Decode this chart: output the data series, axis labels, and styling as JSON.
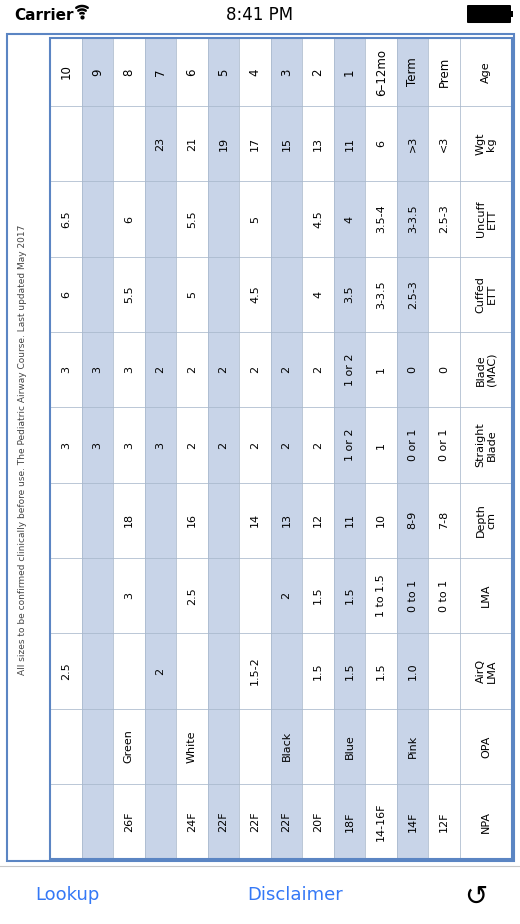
{
  "status_bar_text": "8:41 PM",
  "carrier_text": "Carrier",
  "bottom_links": [
    "Lookup",
    "Disclaimer"
  ],
  "sidebar_text": "All sizes to be confirmed clinically before use. The Pediatric Airway Course. Last updated May 2017",
  "age_labels": [
    "10",
    "9",
    "8",
    "7",
    "6",
    "5",
    "4",
    "3",
    "2",
    "1",
    "6–12mo",
    "Term",
    "Prem"
  ],
  "row_labels": [
    "Age",
    "Wgt\nkg",
    "Uncuff\nETT",
    "Cuffed\nETT",
    "Blade\n(MAC)",
    "Straight\nBlade",
    "Depth\ncm",
    "LMA",
    "AirQ\nLMA",
    "OPA",
    "NPA"
  ],
  "table_data": {
    "wgt": [
      "",
      "",
      "",
      "23",
      "21",
      "19",
      "17",
      "15",
      "13",
      "11",
      "6",
      ">3",
      "<3"
    ],
    "uncuff": [
      "6.5",
      "",
      "6",
      "",
      "5.5",
      "",
      "5",
      "",
      "4.5",
      "4",
      "3.5-4",
      "3-3.5",
      "2.5-3"
    ],
    "cuffed": [
      "6",
      "",
      "5.5",
      "",
      "5",
      "",
      "4.5",
      "",
      "4",
      "3.5",
      "3-3.5",
      "2.5-3",
      ""
    ],
    "blade_mac": [
      "3",
      "3",
      "3",
      "2",
      "2",
      "2",
      "2",
      "2",
      "2",
      "1 or 2",
      "1",
      "0",
      "0"
    ],
    "straight": [
      "3",
      "3",
      "3",
      "3",
      "2",
      "2",
      "2",
      "2",
      "2",
      "1 or 2",
      "1",
      "0 or 1",
      "0 or 1"
    ],
    "depth": [
      "",
      "",
      "18",
      "",
      "16",
      "",
      "14",
      "13",
      "12",
      "11",
      "10",
      "8-9",
      "7-8"
    ],
    "lma": [
      "",
      "",
      "3",
      "",
      "2.5",
      "",
      "",
      "2",
      "1.5",
      "1.5",
      "1 to 1.5",
      "0 to 1",
      "0 to 1"
    ],
    "airq": [
      "2.5",
      "",
      "",
      "2",
      "",
      "",
      "1.5-2",
      "",
      "1.5",
      "1.5",
      "1.5",
      "1.0",
      ""
    ],
    "opa": [
      "",
      "",
      "Green",
      "",
      "White",
      "",
      "",
      "Black",
      "",
      "Blue",
      "",
      "Pink",
      ""
    ],
    "npa": [
      "",
      "",
      "26F",
      "",
      "24F",
      "22F",
      "22F",
      "22F",
      "20F",
      "18F",
      "14-16F",
      "14F",
      "12F"
    ]
  },
  "row_keys": [
    "wgt",
    "uncuff",
    "cuffed",
    "blade_mac",
    "straight",
    "depth",
    "lma",
    "airq",
    "opa",
    "npa"
  ],
  "alt_colors": [
    false,
    true,
    false,
    true,
    false,
    true,
    false,
    true,
    false,
    true,
    false,
    true,
    false
  ],
  "blue_col": "#c8d4e8",
  "white_col": "#ffffff",
  "border_color": "#5b85c3",
  "grid_color": "#a8b8cc",
  "link_color": "#3478f6",
  "bottom_bg": "#e5e5ea",
  "sidebar_color": "#444444"
}
